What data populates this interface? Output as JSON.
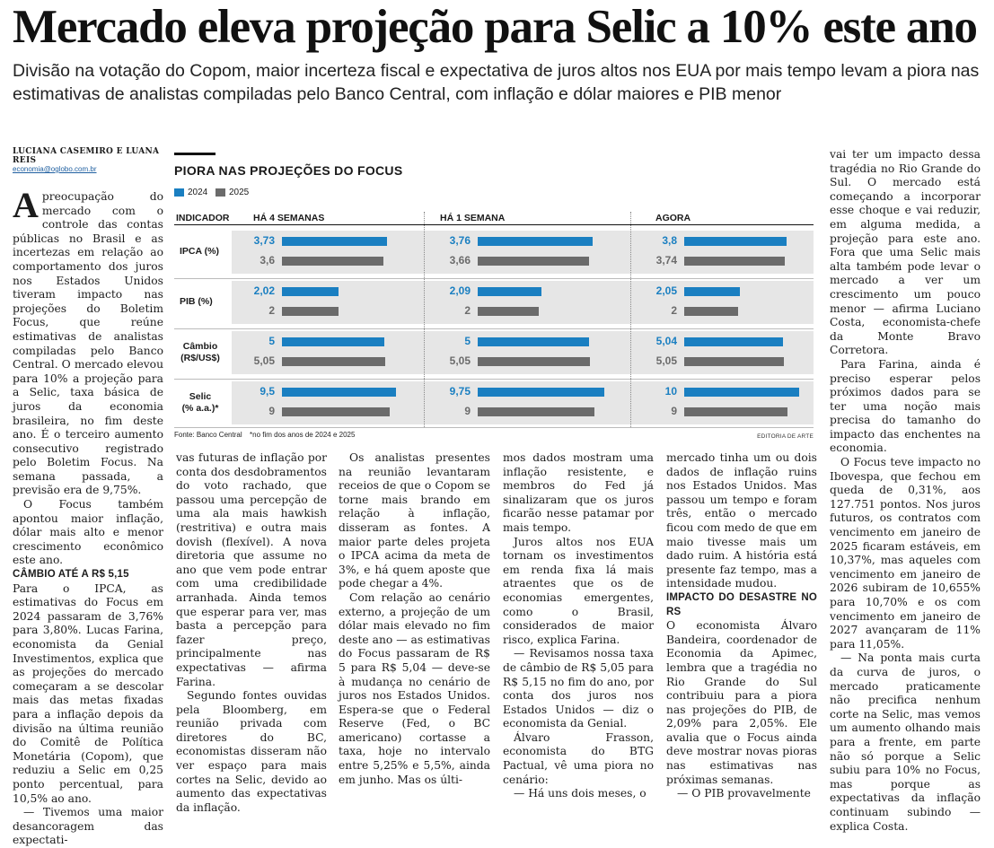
{
  "headline": "Mercado eleva projeção para Selic a 10% este ano",
  "dek": "Divisão na votação do Copom, maior incerteza fiscal e expectativa de juros altos nos EUA por mais tempo levam a piora nas estimativas de analistas compiladas pelo Banco Central, com inflação e dólar maiores e PIB menor",
  "byline": {
    "names": "LUCIANA CASEMIRO E LUANA REIS",
    "email": "economia@oglobo.com.br"
  },
  "chart": {
    "title": "PIORA NAS PROJEÇÕES DO FOCUS",
    "legend": [
      {
        "label": "2024",
        "color": "#1a7fc1"
      },
      {
        "label": "2025",
        "color": "#6b6b6b"
      }
    ],
    "header_indicator": "INDICADOR",
    "periods": [
      "HÁ 4 SEMANAS",
      "HÁ 1 SEMANA",
      "AGORA"
    ],
    "source": "Fonte: Banco Central",
    "note": "*no fim dos anos de 2024 e 2025",
    "credit": "EDITORIA DE ARTE"
  },
  "chart_data": {
    "type": "bar",
    "title": "PIORA NAS PROJEÇÕES DO FOCUS",
    "periods": [
      "HÁ 4 SEMANAS",
      "HÁ 1 SEMANA",
      "AGORA"
    ],
    "series_names": [
      "2024",
      "2025"
    ],
    "indicators": [
      {
        "name": "IPCA (%)",
        "max": 4.6,
        "v2024": [
          "3,73",
          "3,76",
          "3,8"
        ],
        "n2024": [
          3.73,
          3.76,
          3.8
        ],
        "v2025": [
          "3,6",
          "3,66",
          "3,74"
        ],
        "n2025": [
          3.6,
          3.66,
          3.74
        ]
      },
      {
        "name": "PIB (%)",
        "max": 4.6,
        "v2024": [
          "2,02",
          "2,09",
          "2,05"
        ],
        "n2024": [
          2.02,
          2.09,
          2.05
        ],
        "v2025": [
          "2",
          "2",
          "2"
        ],
        "n2025": [
          2,
          2,
          2
        ]
      },
      {
        "name": "Câmbio\n(R$/US$)",
        "max": 6.3,
        "v2024": [
          "5",
          "5",
          "5,04"
        ],
        "n2024": [
          5,
          5,
          5.04
        ],
        "v2025": [
          "5,05",
          "5,05",
          "5,05"
        ],
        "n2025": [
          5.05,
          5.05,
          5.05
        ]
      },
      {
        "name": "Selic\n(% a.a.)*",
        "max": 10.8,
        "v2024": [
          "9,5",
          "9,75",
          "10"
        ],
        "n2024": [
          9.5,
          9.75,
          10
        ],
        "v2025": [
          "9",
          "9",
          "9"
        ],
        "n2025": [
          9,
          9,
          9
        ]
      }
    ]
  },
  "columns": {
    "c1": {
      "dropcap": "A",
      "p1": "preocupação do mercado com o controle das contas públicas no Brasil e as incertezas em relação ao comportamento dos juros nos Estados Unidos tiveram impacto nas projeções do Boletim Focus, que reúne estimativas de analistas compiladas pelo Banco Central. O mercado elevou para 10% a projeção para a Selic, taxa básica de juros da economia brasileira, no fim deste ano. É o terceiro aumento consecutivo registrado pelo Boletim Focus. Na semana passada, a previsão era de 9,75%.",
      "p2": "O Focus também apontou maior inflação, dólar mais alto e menor crescimento econômico este ano.",
      "subhead": "CÂMBIO ATÉ A R$ 5,15",
      "p3": "Para o IPCA, as estimativas do Focus em 2024 passaram de 3,76% para 3,80%. Lucas Farina, economista da Genial Investimentos, explica que as projeções do mercado começaram a se descolar mais das metas fixadas para a inflação depois da divisão na última reunião do Comitê de Política Monetária (Copom), que reduziu a Selic em 0,25 ponto percentual, para 10,5% ao ano.",
      "p4": "— Tivemos uma maior desancoragem das expectati-"
    },
    "c2": {
      "p1": "vas futuras de inflação por conta dos desdobramentos do voto rachado, que passou uma percepção de uma ala mais hawkish (restritiva) e outra mais dovish (flexível). A nova diretoria que assume no ano que vem pode entrar com uma credibilidade arranhada. Ainda temos que esperar para ver, mas basta a percepção para fazer preço, principalmente nas expectativas — afirma Farina.",
      "p2": "Segundo fontes ouvidas pela Bloomberg, em reunião privada com diretores do BC, economistas disseram não ver espaço para mais cortes na Selic, devido ao aumento das expectativas da inflação."
    },
    "c3": {
      "p1": "Os analistas presentes na reunião levantaram receios de que o Copom se torne mais brando em relação à inflação, disseram as fontes. A maior parte deles projeta o IPCA acima da meta de 3%, e há quem aposte que pode chegar a 4%.",
      "p2": "Com relação ao cenário externo, a projeção de um dólar mais elevado no fim deste ano — as estimativas do Focus passaram de R$ 5 para R$ 5,04 — deve-se à mudança no cenário de juros nos Estados Unidos. Espera-se que o Federal Reserve (Fed, o BC americano) cortasse a taxa, hoje no intervalo entre 5,25% e 5,5%, ainda em junho. Mas os últi-"
    },
    "c4": {
      "p1": "mos dados mostram uma inflação resistente, e membros do Fed já sinalizaram que os juros ficarão nesse patamar por mais tempo.",
      "p2": "Juros altos nos EUA tornam os investimentos em renda fixa lá mais atraentes que os de economias emergentes, como o Brasil, considerados de maior risco, explica Farina.",
      "p3": "— Revisamos nossa taxa de câmbio de R$ 5,05 para R$ 5,15 no fim do ano, por conta dos juros nos Estados Unidos — diz o economista da Genial.",
      "p4": "Álvaro Frasson, economista do BTG Pactual, vê uma piora no cenário:",
      "p5": "— Há uns dois meses, o"
    },
    "c5": {
      "p1": "mercado tinha um ou dois dados de inflação ruins nos Estados Unidos. Mas passou um tempo e foram três, então o mercado ficou com medo de que em maio tivesse mais um dado ruim. A história está presente faz tempo, mas a intensidade mudou.",
      "subhead": "IMPACTO DO DESASTRE NO RS",
      "p2": "O economista Álvaro Bandeira, coordenador de Economia da Apimec, lembra que a tragédia no Rio Grande do Sul contribuiu para a piora nas projeções do PIB, de 2,09% para 2,05%. Ele avalia que o Focus ainda deve mostrar novas pioras nas estimativas nas próximas semanas.",
      "p3": "— O PIB provavelmente"
    },
    "c6": {
      "p1": "vai ter um impacto dessa tragédia no Rio Grande do Sul. O mercado está começando a incorporar esse choque e vai reduzir, em alguma medida, a projeção para este ano. Fora que uma Selic mais alta também pode levar o mercado a ver um crescimento um pouco menor — afirma Luciano Costa, economista-chefe da Monte Bravo Corretora.",
      "p2": "Para Farina, ainda é preciso esperar pelos próximos dados para se ter uma noção mais precisa do tamanho do impacto das enchentes na economia.",
      "p3": "O Focus teve impacto no Ibovespa, que fechou em queda de 0,31%, aos 127.751 pontos. Nos juros futuros, os contratos com vencimento em janeiro de 2025 ficaram estáveis, em 10,37%, mas aqueles com vencimento em janeiro de 2026 subiram de 10,655% para 10,70% e os com vencimento em janeiro de 2027 avançaram de 11% para 11,05%.",
      "p4": "— Na ponta mais curta da curva de juros, o mercado praticamente não precifica nenhum corte na Selic, mas vemos um aumento olhando mais para a frente, em parte não só porque a Selic subiu para 10% no Focus, mas porque as expectativas da inflação continuam subindo — explica Costa."
    }
  }
}
